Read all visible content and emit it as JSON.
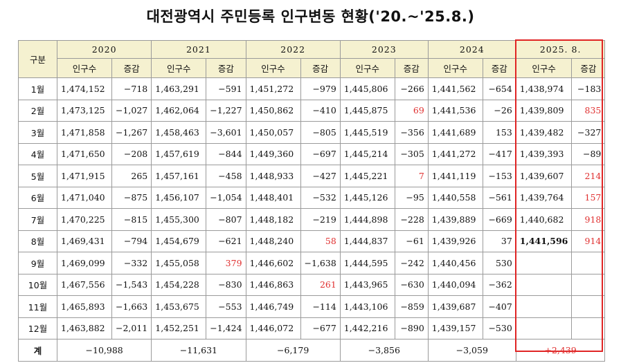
{
  "title": "대전광역시 주민등록 인구변동 현황('20.~'25.8.)",
  "header": {
    "row_label": "구분",
    "years": [
      "2020",
      "2021",
      "2022",
      "2023",
      "2024",
      "2025. 8."
    ],
    "pop_label": "인구수",
    "change_label": "증감"
  },
  "rows": [
    {
      "month": "1월",
      "cells": [
        [
          "1,474,152",
          "-718"
        ],
        [
          "1,463,291",
          "-591"
        ],
        [
          "1,451,272",
          "-979"
        ],
        [
          "1,445,806",
          "-266"
        ],
        [
          "1,441,562",
          "-654"
        ],
        [
          "1,438,974",
          "-183"
        ]
      ]
    },
    {
      "month": "2월",
      "cells": [
        [
          "1,473,125",
          "-1,027"
        ],
        [
          "1,462,064",
          "-1,227"
        ],
        [
          "1,450,862",
          "-410"
        ],
        [
          "1,445,875",
          "69"
        ],
        [
          "1,441,536",
          "-26"
        ],
        [
          "1,439,809",
          "835"
        ]
      ]
    },
    {
      "month": "3월",
      "cells": [
        [
          "1,471,858",
          "-1,267"
        ],
        [
          "1,458,463",
          "-3,601"
        ],
        [
          "1,450,057",
          "-805"
        ],
        [
          "1,445,519",
          "-356"
        ],
        [
          "1,441,689",
          "153"
        ],
        [
          "1,439,482",
          "-327"
        ]
      ]
    },
    {
      "month": "4월",
      "cells": [
        [
          "1,471,650",
          "-208"
        ],
        [
          "1,457,619",
          "-844"
        ],
        [
          "1,449,360",
          "-697"
        ],
        [
          "1,445,214",
          "-305"
        ],
        [
          "1,441,272",
          "-417"
        ],
        [
          "1,439,393",
          "-89"
        ]
      ]
    },
    {
      "month": "5월",
      "cells": [
        [
          "1,471,915",
          "265"
        ],
        [
          "1,457,161",
          "-458"
        ],
        [
          "1,448,933",
          "-427"
        ],
        [
          "1,445,221",
          "7"
        ],
        [
          "1,441,119",
          "-153"
        ],
        [
          "1,439,607",
          "214"
        ]
      ]
    },
    {
      "month": "6월",
      "cells": [
        [
          "1,471,040",
          "-875"
        ],
        [
          "1,456,107",
          "-1,054"
        ],
        [
          "1,448,401",
          "-532"
        ],
        [
          "1,445,126",
          "-95"
        ],
        [
          "1,440,558",
          "-561"
        ],
        [
          "1,439,764",
          "157"
        ]
      ]
    },
    {
      "month": "7월",
      "cells": [
        [
          "1,470,225",
          "-815"
        ],
        [
          "1,455,300",
          "-807"
        ],
        [
          "1,448,182",
          "-219"
        ],
        [
          "1,444,898",
          "-228"
        ],
        [
          "1,439,889",
          "-669"
        ],
        [
          "1,440,682",
          "918"
        ]
      ]
    },
    {
      "month": "8월",
      "cells": [
        [
          "1,469,431",
          "-794"
        ],
        [
          "1,454,679",
          "-621"
        ],
        [
          "1,448,240",
          "58"
        ],
        [
          "1,444,837",
          "-61"
        ],
        [
          "1,439,926",
          "37"
        ],
        [
          "1,441,596",
          "914"
        ]
      ]
    },
    {
      "month": "9월",
      "cells": [
        [
          "1,469,099",
          "-332"
        ],
        [
          "1,455,058",
          "379"
        ],
        [
          "1,446,602",
          "-1,638"
        ],
        [
          "1,444,595",
          "-242"
        ],
        [
          "1,440,456",
          "530"
        ],
        [
          "",
          ""
        ]
      ]
    },
    {
      "month": "10월",
      "cells": [
        [
          "1,467,556",
          "-1,543"
        ],
        [
          "1,454,228",
          "-830"
        ],
        [
          "1,446,863",
          "261"
        ],
        [
          "1,443,965",
          "-630"
        ],
        [
          "1,440,094",
          "-362"
        ],
        [
          "",
          ""
        ]
      ]
    },
    {
      "month": "11월",
      "cells": [
        [
          "1,465,893",
          "-1,663"
        ],
        [
          "1,453,675",
          "-553"
        ],
        [
          "1,446,749",
          "-114"
        ],
        [
          "1,443,106",
          "-859"
        ],
        [
          "1,439,687",
          "-407"
        ],
        [
          "",
          ""
        ]
      ]
    },
    {
      "month": "12월",
      "cells": [
        [
          "1,463,882",
          "-2,011"
        ],
        [
          "1,452,251",
          "-1,424"
        ],
        [
          "1,446,072",
          "-677"
        ],
        [
          "1,442,216",
          "-890"
        ],
        [
          "1,439,157",
          "-530"
        ],
        [
          "",
          ""
        ]
      ]
    }
  ],
  "red_cells": [
    [
      1,
      3,
      1
    ],
    [
      1,
      5,
      1
    ],
    [
      4,
      3,
      1
    ],
    [
      4,
      5,
      1
    ],
    [
      5,
      5,
      1
    ],
    [
      6,
      5,
      1
    ],
    [
      7,
      2,
      1
    ],
    [
      7,
      5,
      1
    ],
    [
      8,
      1,
      1
    ],
    [
      9,
      2,
      1
    ]
  ],
  "bold_cells": [
    [
      7,
      5,
      0
    ]
  ],
  "total": {
    "label": "계",
    "values": [
      "-10,988",
      "-11,631",
      "-6,179",
      "-3,856",
      "-3,059",
      "+2,439"
    ]
  },
  "colors": {
    "header_bg": "#f5f1d0",
    "highlight_border": "#e02424",
    "positive_text": "#e03030"
  }
}
